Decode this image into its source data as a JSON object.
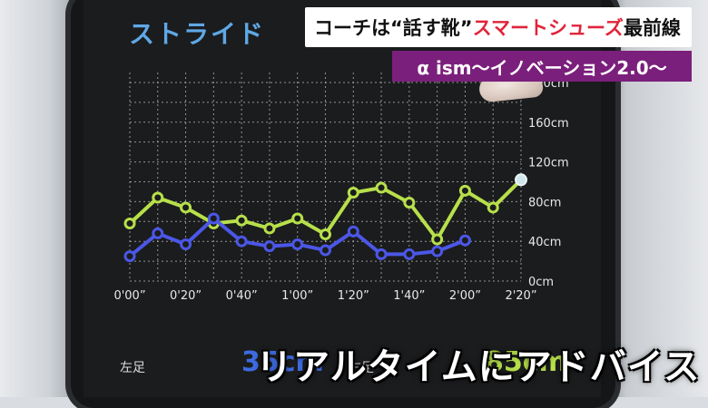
{
  "app": {
    "title": "ストライド"
  },
  "news": {
    "headline_part1": "コーチは“話す靴”",
    "headline_part2": "スマートシューズ",
    "headline_part3": "最前線",
    "subheadline": "α ism～イノベーション2.0～"
  },
  "footer": {
    "left_foot_label": "左足",
    "right_foot_label": "右足",
    "left_value": "35cm",
    "right_value": "85cm",
    "caption": "リアルタイムにアドバイス"
  },
  "colors": {
    "series_green": "#b7e04a",
    "series_blue": "#4b57e6",
    "banner_red": "#e0243a",
    "banner_purple": "#7b1f7c"
  },
  "chart_data": {
    "type": "line",
    "x_tick_labels": [
      "0'00”",
      "0'20”",
      "0'40”",
      "1'00”",
      "1'20”",
      "1'40”",
      "2'00”",
      "2'20”"
    ],
    "y_tick_labels": [
      "0cm",
      "40cm",
      "80cm",
      "120cm",
      "160cm",
      "200cm"
    ],
    "ylim": [
      0,
      210
    ],
    "xlim": [
      0,
      140
    ],
    "grid": true,
    "series": [
      {
        "color": "#b7e04a",
        "x": [
          0,
          10,
          20,
          30,
          40,
          50,
          60,
          70,
          80,
          90,
          100,
          110,
          120,
          130,
          140
        ],
        "values": [
          58,
          84,
          74,
          58,
          61,
          53,
          63,
          47,
          89,
          94,
          79,
          42,
          91,
          74,
          102
        ]
      },
      {
        "color": "#4b57e6",
        "x": [
          0,
          10,
          20,
          30,
          40,
          50,
          60,
          70,
          80,
          90,
          100,
          110,
          120
        ],
        "values": [
          25,
          48,
          37,
          63,
          40,
          35,
          37,
          31,
          50,
          27,
          27,
          30,
          41
        ]
      }
    ]
  }
}
